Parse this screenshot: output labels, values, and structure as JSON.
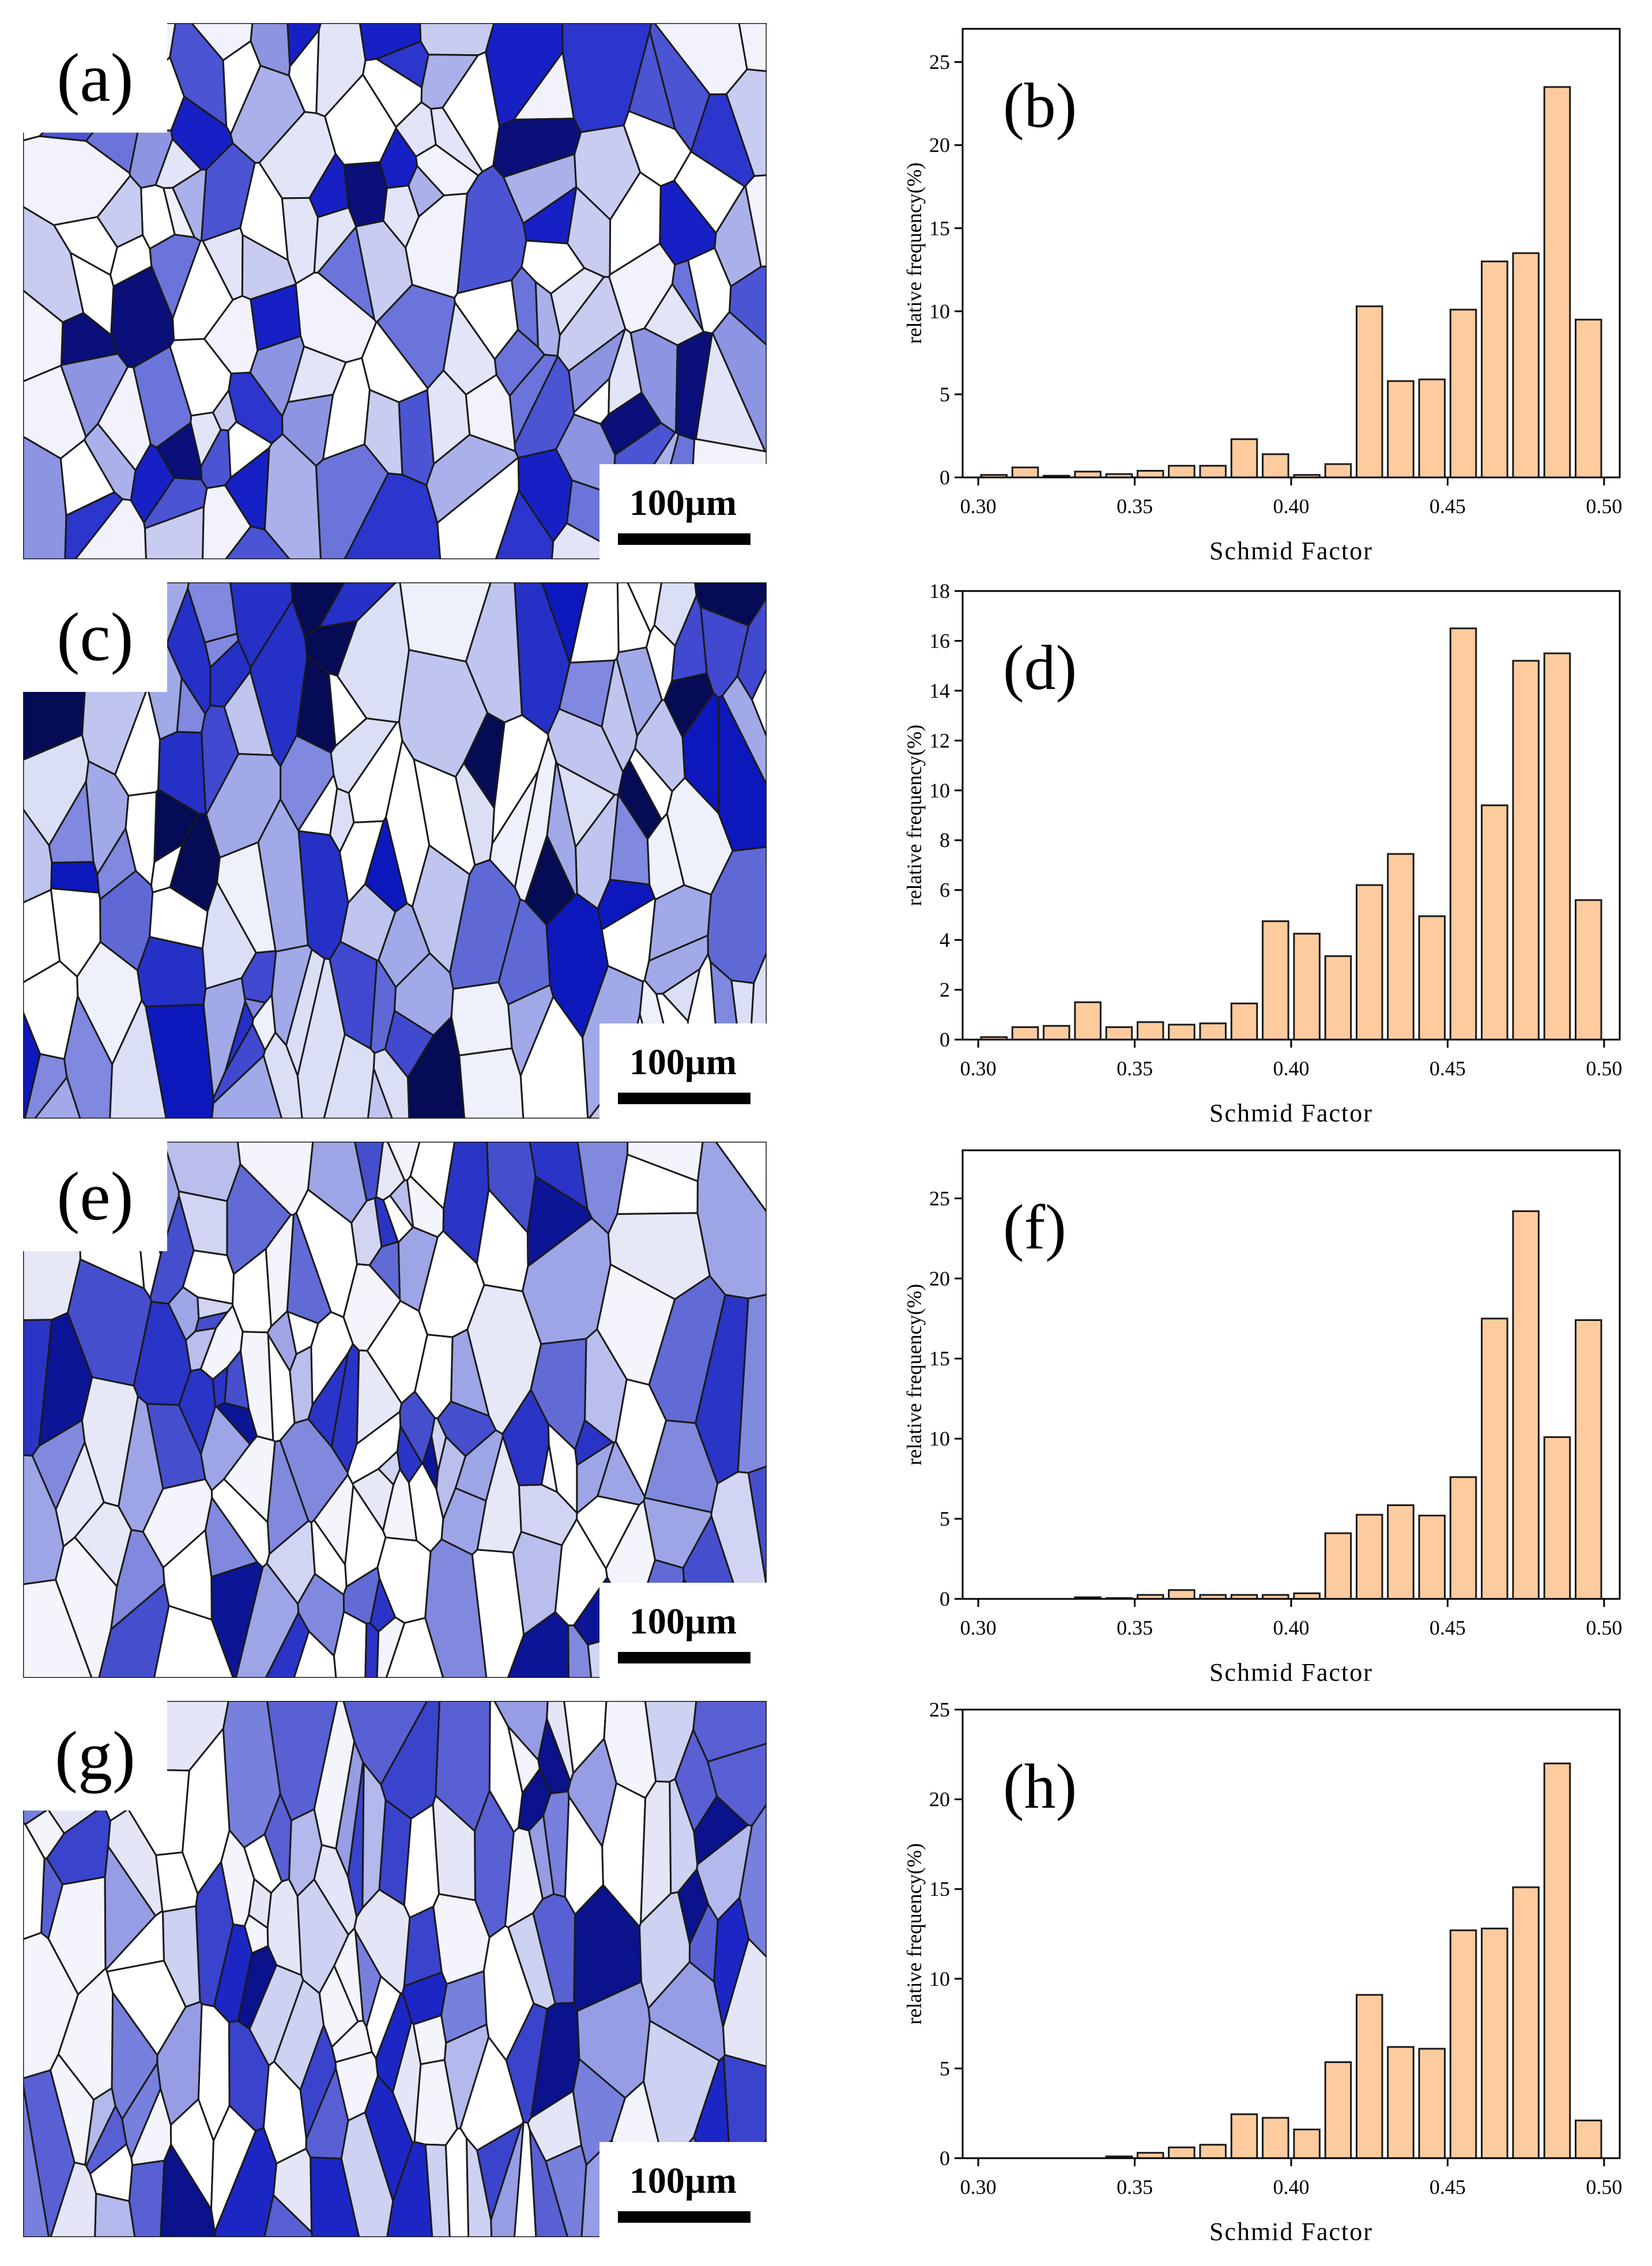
{
  "maps": [
    {
      "id": "map-a",
      "label": "(a)",
      "scalebar": "100µm",
      "palette": [
        "#ffffff",
        "#f1f2fb",
        "#e2e4f7",
        "#c8ccf1",
        "#aab0e9",
        "#8d94e2",
        "#6b74da",
        "#4b54d3",
        "#2c35cc",
        "#1620c5",
        "#0a0f7a"
      ]
    },
    {
      "id": "map-c",
      "label": "(c)",
      "scalebar": "100µm",
      "palette": [
        "#ffffff",
        "#eef0fb",
        "#dadff6",
        "#bfc5ef",
        "#a2a9e8",
        "#8088df",
        "#5f69d6",
        "#4049cf",
        "#2530c7",
        "#0d18bd",
        "#060b55"
      ]
    },
    {
      "id": "map-e",
      "label": "(e)",
      "scalebar": "100µm",
      "palette": [
        "#ffffff",
        "#f4f5fc",
        "#e6e8f8",
        "#d1d5f3",
        "#b9beed",
        "#9ea5e6",
        "#8189de",
        "#626bd5",
        "#454fcd",
        "#2a34c6",
        "#0c1596"
      ]
    },
    {
      "id": "map-g",
      "label": "(g)",
      "scalebar": "100µm",
      "palette": [
        "#ffffff",
        "#f3f4fc",
        "#e4e6f8",
        "#cdd1f2",
        "#b3b9ec",
        "#969de4",
        "#7780dc",
        "#5860d4",
        "#3a43cc",
        "#1c26c4",
        "#0a128c"
      ]
    }
  ],
  "chart_data": [
    {
      "type": "bar",
      "tag": "(b)",
      "title": "",
      "xlabel": "Schmid Factor",
      "ylabel": "relative frequency(%)",
      "x": [
        0.305,
        0.315,
        0.325,
        0.335,
        0.345,
        0.355,
        0.365,
        0.375,
        0.385,
        0.395,
        0.405,
        0.415,
        0.425,
        0.435,
        0.445,
        0.455,
        0.465,
        0.475,
        0.485,
        0.495
      ],
      "values": [
        0.15,
        0.6,
        0.1,
        0.35,
        0.2,
        0.4,
        0.7,
        0.7,
        2.3,
        1.4,
        0.15,
        0.8,
        10.3,
        5.8,
        5.9,
        10.1,
        13.0,
        13.5,
        23.5,
        9.5
      ],
      "xlim": [
        0.295,
        0.505
      ],
      "ylim": [
        0,
        27
      ],
      "yticks": [
        0,
        5,
        10,
        15,
        20,
        25
      ],
      "xticks": [
        0.3,
        0.35,
        0.4,
        0.45,
        0.5
      ],
      "xtick_labels": [
        "0.30",
        "0.35",
        "0.40",
        "0.45",
        "0.50"
      ]
    },
    {
      "type": "bar",
      "tag": "(d)",
      "title": "",
      "xlabel": "Schmid Factor",
      "ylabel": "relative frequency(%)",
      "x": [
        0.305,
        0.315,
        0.325,
        0.335,
        0.345,
        0.355,
        0.365,
        0.375,
        0.385,
        0.395,
        0.405,
        0.415,
        0.425,
        0.435,
        0.445,
        0.455,
        0.465,
        0.475,
        0.485,
        0.495
      ],
      "values": [
        0.1,
        0.5,
        0.55,
        1.5,
        0.5,
        0.7,
        0.6,
        0.65,
        1.45,
        4.75,
        4.25,
        3.35,
        6.2,
        7.45,
        4.95,
        16.5,
        9.4,
        15.2,
        15.5,
        5.6
      ],
      "xlim": [
        0.295,
        0.505
      ],
      "ylim": [
        0,
        18
      ],
      "yticks": [
        0,
        2,
        4,
        6,
        8,
        10,
        12,
        14,
        16,
        18
      ],
      "xticks": [
        0.3,
        0.35,
        0.4,
        0.45,
        0.5
      ],
      "xtick_labels": [
        "0.30",
        "0.35",
        "0.40",
        "0.45",
        "0.50"
      ]
    },
    {
      "type": "bar",
      "tag": "(f)",
      "title": "",
      "xlabel": "Schmid Factor",
      "ylabel": "relative frequency(%)",
      "x": [
        0.305,
        0.315,
        0.325,
        0.335,
        0.345,
        0.355,
        0.365,
        0.375,
        0.385,
        0.395,
        0.405,
        0.415,
        0.425,
        0.435,
        0.445,
        0.455,
        0.465,
        0.475,
        0.485,
        0.495
      ],
      "values": [
        0.0,
        0.0,
        0.0,
        0.1,
        0.05,
        0.25,
        0.55,
        0.25,
        0.25,
        0.25,
        0.35,
        4.1,
        5.25,
        5.85,
        5.2,
        7.6,
        17.5,
        24.2,
        10.1,
        17.4
      ],
      "xlim": [
        0.295,
        0.505
      ],
      "ylim": [
        0,
        28
      ],
      "yticks": [
        0,
        5,
        10,
        15,
        20,
        25
      ],
      "xticks": [
        0.3,
        0.35,
        0.4,
        0.45,
        0.5
      ],
      "xtick_labels": [
        "0.30",
        "0.35",
        "0.40",
        "0.45",
        "0.50"
      ]
    },
    {
      "type": "bar",
      "tag": "(h)",
      "title": "",
      "xlabel": "Schmid Factor",
      "ylabel": "relative frequency(%)",
      "x": [
        0.305,
        0.315,
        0.325,
        0.335,
        0.345,
        0.355,
        0.365,
        0.375,
        0.385,
        0.395,
        0.405,
        0.415,
        0.425,
        0.435,
        0.445,
        0.455,
        0.465,
        0.475,
        0.485,
        0.495
      ],
      "values": [
        0.0,
        0.0,
        0.0,
        0.0,
        0.1,
        0.3,
        0.6,
        0.75,
        2.45,
        2.25,
        1.6,
        5.35,
        9.1,
        6.2,
        6.1,
        12.7,
        12.8,
        15.1,
        22.0,
        2.1
      ],
      "xlim": [
        0.295,
        0.505
      ],
      "ylim": [
        0,
        25
      ],
      "yticks": [
        0,
        5,
        10,
        15,
        20,
        25
      ],
      "xticks": [
        0.3,
        0.35,
        0.4,
        0.45,
        0.5
      ],
      "xtick_labels": [
        "0.30",
        "0.35",
        "0.40",
        "0.45",
        "0.50"
      ]
    }
  ],
  "style": {
    "bar_fill": "#fdcb9e",
    "bar_stroke": "#1a1a1a",
    "axis_color": "#000000",
    "grain_boundary": "#1a1a1a"
  }
}
